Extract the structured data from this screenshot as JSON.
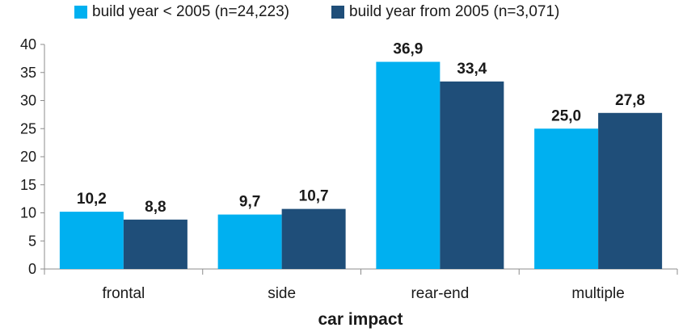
{
  "chart_data": {
    "type": "bar",
    "categories": [
      "frontal",
      "side",
      "rear-end",
      "multiple"
    ],
    "series": [
      {
        "name": "build year < 2005 (n=24,223)",
        "values": [
          10.2,
          9.7,
          36.9,
          25.0
        ],
        "labels": [
          "10,2",
          "9,7",
          "36,9",
          "25,0"
        ],
        "color": "#00b0f0"
      },
      {
        "name": "build year from 2005 (n=3,071)",
        "values": [
          8.8,
          10.7,
          33.4,
          27.8
        ],
        "labels": [
          "8,8",
          "10,7",
          "33,4",
          "27,8"
        ],
        "color": "#1f4e79"
      }
    ],
    "title": "",
    "xlabel": "car impact",
    "ylabel": "",
    "ylim": [
      0,
      40
    ],
    "yticks": [
      0,
      5,
      10,
      15,
      20,
      25,
      30,
      35,
      40
    ],
    "legend_position": "top",
    "grid": false
  }
}
